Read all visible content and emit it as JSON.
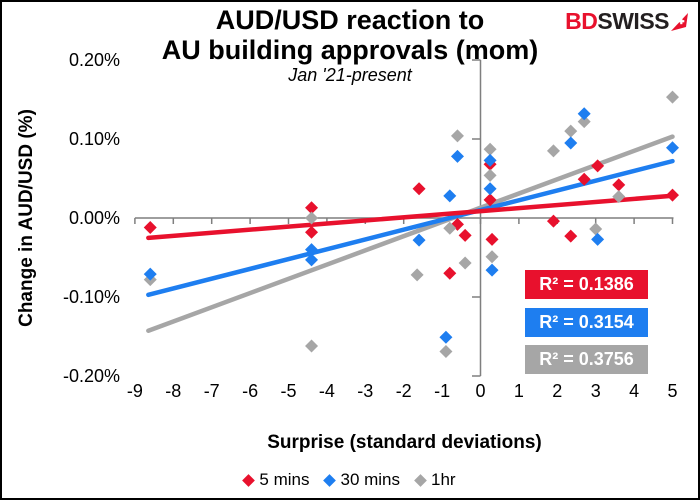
{
  "header": {
    "title_line1": "AUD/USD reaction to",
    "title_line2": "AU building approvals (mom)",
    "subtitle": "Jan '21-present"
  },
  "logo": {
    "part1": "BD",
    "part2": "SWISS",
    "part1_color": "#e8112d",
    "part2_color": "#231f20",
    "arrow_color": "#e8112d"
  },
  "chart_data": {
    "type": "scatter",
    "title": "AUD/USD reaction to AU building approvals (mom)",
    "subtitle": "Jan '21-present",
    "xlabel": "Surprise (standard deviations)",
    "ylabel": "Change in AUD/USD (%)",
    "xlim": [
      -9,
      5
    ],
    "ylim_pct": [
      -0.2,
      0.2
    ],
    "grid": false,
    "legend_position": "bottom",
    "axis_color": "#7f7f7f",
    "x_ticks": [
      -9,
      -8,
      -7,
      -6,
      -5,
      -4,
      -3,
      -2,
      -1,
      0,
      1,
      2,
      3,
      4,
      5
    ],
    "y_ticks": [
      {
        "value": 0.2,
        "label": "0.20%"
      },
      {
        "value": 0.1,
        "label": "0.10%"
      },
      {
        "value": 0,
        "label": "0.00%"
      },
      {
        "value": -0.1,
        "label": "-0.10%"
      },
      {
        "value": -0.2,
        "label": "-0.20%"
      }
    ],
    "series": [
      {
        "name": "5 mins",
        "color": "#e8112d",
        "r2_label": "R² = 0.1386",
        "r2_value": 0.1386,
        "trend": {
          "slope": 0.0039,
          "intercept": 0.0086,
          "x_start": -8.65,
          "x_end": 5
        },
        "points": [
          [
            -8.6,
            -0.012
          ],
          [
            -4.4,
            0.013
          ],
          [
            -4.4,
            -0.018
          ],
          [
            -1.6,
            0.037
          ],
          [
            -0.8,
            -0.07
          ],
          [
            -0.6,
            -0.008
          ],
          [
            -0.4,
            -0.022
          ],
          [
            0.25,
            0.068
          ],
          [
            0.25,
            0.023
          ],
          [
            0.3,
            -0.027
          ],
          [
            1.9,
            -0.004
          ],
          [
            2.35,
            -0.023
          ],
          [
            2.7,
            0.049
          ],
          [
            3.05,
            0.066
          ],
          [
            3.6,
            0.042
          ],
          [
            5,
            0.029
          ]
        ]
      },
      {
        "name": "30 mins",
        "color": "#1e7ef0",
        "r2_label": "R² = 0.3154",
        "r2_value": 0.3154,
        "trend": {
          "slope": 0.0124,
          "intercept": 0.01,
          "x_start": -8.65,
          "x_end": 5
        },
        "points": [
          [
            -8.6,
            -0.071
          ],
          [
            -4.4,
            -0.04
          ],
          [
            -4.4,
            -0.053
          ],
          [
            -1.6,
            -0.028
          ],
          [
            -0.9,
            -0.151
          ],
          [
            -0.8,
            0.028
          ],
          [
            -0.6,
            0.078
          ],
          [
            0.25,
            0.073
          ],
          [
            0.25,
            0.037
          ],
          [
            0.3,
            -0.066
          ],
          [
            2.35,
            0.095
          ],
          [
            2.7,
            0.132
          ],
          [
            3.05,
            -0.027
          ],
          [
            5,
            0.089
          ]
        ]
      },
      {
        "name": "1hr",
        "color": "#a6a6a6",
        "r2_label": "R² = 0.3756",
        "r2_value": 0.3756,
        "trend": {
          "slope": 0.018,
          "intercept": 0.013,
          "x_start": -8.65,
          "x_end": 5
        },
        "points": [
          [
            -8.6,
            -0.078
          ],
          [
            -4.4,
            0.0
          ],
          [
            -4.4,
            -0.162
          ],
          [
            -1.65,
            -0.072
          ],
          [
            -0.9,
            -0.169
          ],
          [
            -0.8,
            -0.013
          ],
          [
            -0.6,
            0.104
          ],
          [
            -0.4,
            -0.057
          ],
          [
            0.25,
            0.087
          ],
          [
            0.25,
            0.054
          ],
          [
            0.3,
            -0.049
          ],
          [
            1.9,
            0.085
          ],
          [
            2.35,
            0.11
          ],
          [
            2.7,
            0.122
          ],
          [
            3.0,
            -0.014
          ],
          [
            3.6,
            0.027
          ],
          [
            5,
            0.153
          ]
        ]
      }
    ]
  }
}
